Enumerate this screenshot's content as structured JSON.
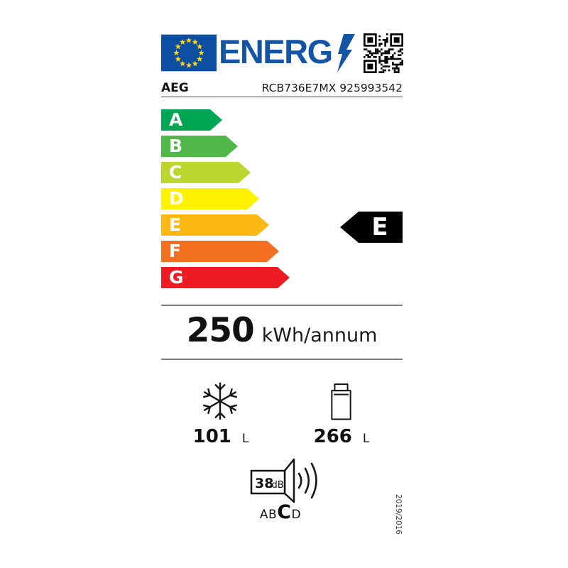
{
  "header": {
    "logo_text": "ENERG",
    "brand": "AEG",
    "model": "RCB736E7MX 925993542"
  },
  "colors": {
    "flag_blue": "#0B4EA2",
    "star_yellow": "#FFD617",
    "logo_blue": "#1355A4",
    "rating_black": "#000000"
  },
  "scale": [
    {
      "grade": "A",
      "color": "#00A651"
    },
    {
      "grade": "B",
      "color": "#50B848"
    },
    {
      "grade": "C",
      "color": "#BDD62F"
    },
    {
      "grade": "D",
      "color": "#FFF200"
    },
    {
      "grade": "E",
      "color": "#FDB913"
    },
    {
      "grade": "F",
      "color": "#F37021"
    },
    {
      "grade": "G",
      "color": "#ED1C24"
    }
  ],
  "rating": {
    "grade": "E"
  },
  "energy": {
    "value": "250",
    "unit": "kWh/annum"
  },
  "freezer_volume": {
    "value": "101",
    "unit": "L"
  },
  "fridge_volume": {
    "value": "266",
    "unit": "L"
  },
  "noise": {
    "value": "38",
    "unit": "dB",
    "class_prefix": "AB",
    "class": "C",
    "class_suffix": "D"
  },
  "regulation": "2019/2016"
}
